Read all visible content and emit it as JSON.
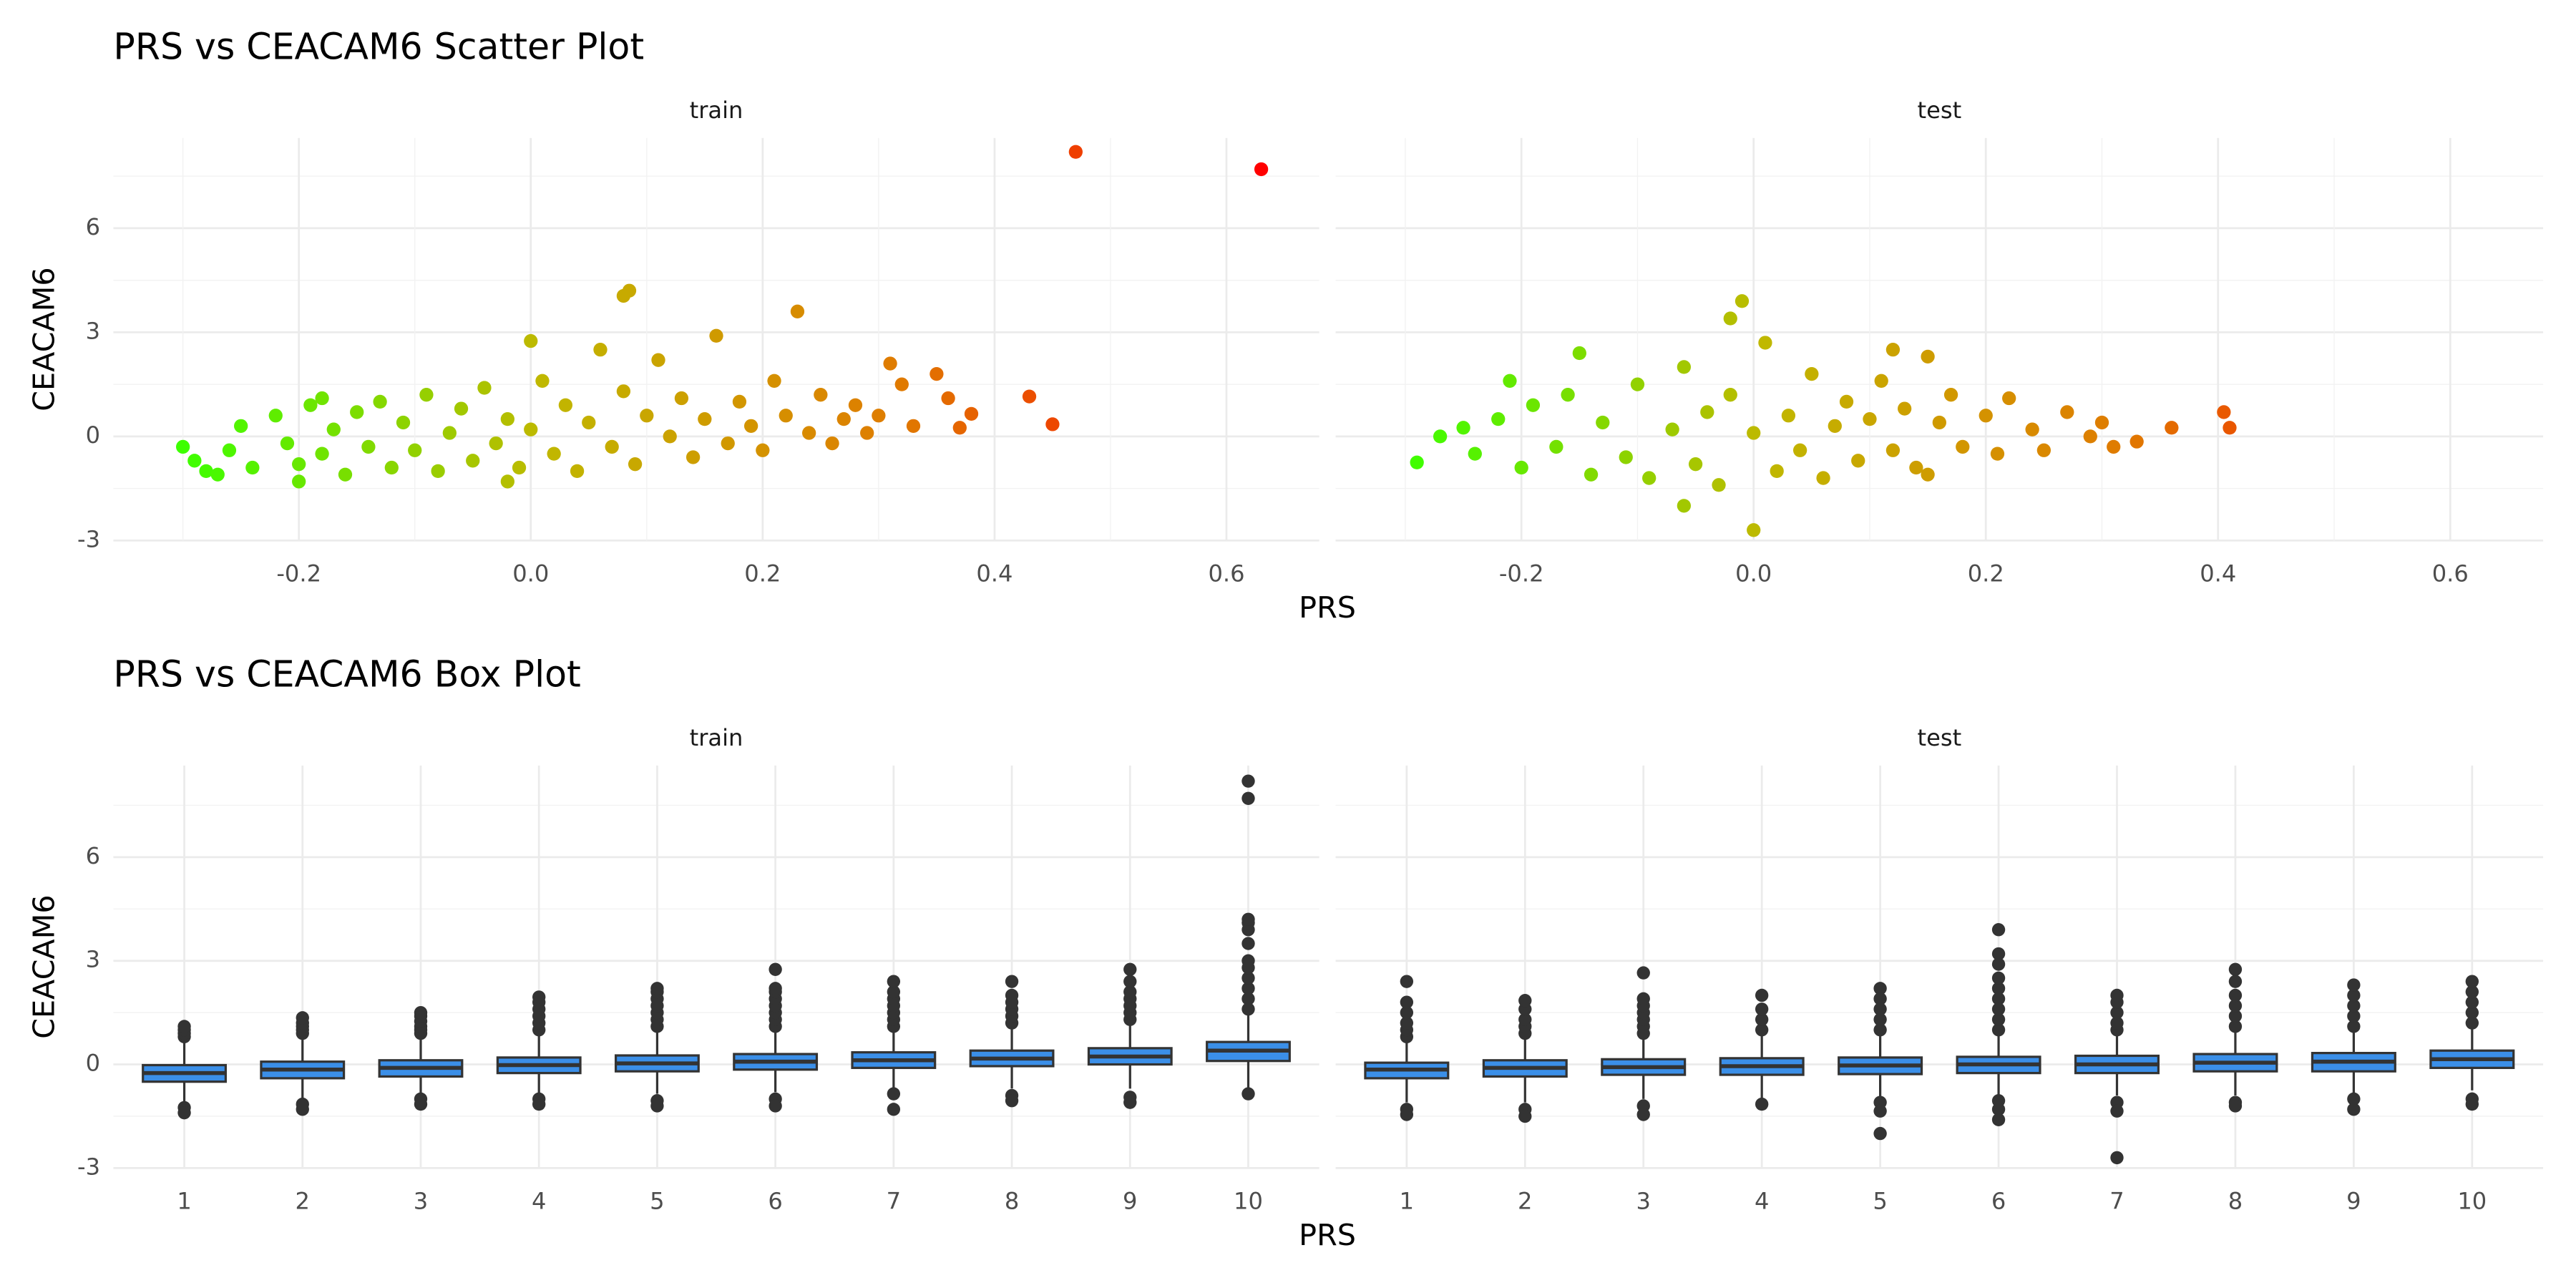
{
  "chart_data": [
    {
      "type": "scatter",
      "title": "PRS vs CEACAM6 Scatter Plot",
      "xlabel": "PRS",
      "ylabel": "CEACAM6",
      "xlim": [
        -0.36,
        0.68
      ],
      "ylim": [
        -3,
        8.6
      ],
      "xticks": [
        -0.2,
        {
          "value": 0,
          "label": "0.0"
        },
        0.2,
        0.4,
        0.6
      ],
      "yticks": [
        -3,
        0,
        3,
        6
      ],
      "grid": true,
      "colors": [
        "#3dff00",
        "#c0b800",
        "#e07a00",
        "#ff0000"
      ],
      "panels": [
        {
          "name": "train",
          "x": [
            0.47,
            0.63,
            0.43,
            0.45,
            0.085,
            0.08,
            0.23,
            -0.3,
            -0.29,
            -0.28,
            -0.27,
            0.38,
            0.36,
            0.37,
            0.35,
            0.31,
            0.0,
            -0.18,
            -0.02,
            -0.2,
            -0.26,
            -0.25,
            -0.24,
            -0.22,
            -0.21,
            -0.2,
            -0.19,
            -0.18,
            -0.17,
            -0.16,
            -0.15,
            -0.14,
            -0.13,
            -0.12,
            -0.11,
            -0.1,
            -0.09,
            -0.08,
            -0.07,
            -0.06,
            -0.05,
            -0.04,
            -0.03,
            -0.02,
            -0.01,
            0.0,
            0.01,
            0.02,
            0.03,
            0.04,
            0.05,
            0.06,
            0.07,
            0.08,
            0.09,
            0.1,
            0.11,
            0.12,
            0.13,
            0.14,
            0.15,
            0.16,
            0.17,
            0.18,
            0.19,
            0.2,
            0.21,
            0.22,
            0.24,
            0.25,
            0.26,
            0.27,
            0.28,
            0.29,
            0.3,
            0.32,
            0.33
          ],
          "y": [
            8.2,
            7.7,
            1.15,
            0.35,
            4.2,
            4.05,
            3.6,
            -0.3,
            -0.7,
            -1.0,
            -1.1,
            0.65,
            1.1,
            0.25,
            1.8,
            2.1,
            2.75,
            1.1,
            -1.3,
            -1.3,
            -0.4,
            0.3,
            -0.9,
            0.6,
            -0.2,
            -0.8,
            0.9,
            -0.5,
            0.2,
            -1.1,
            0.7,
            -0.3,
            1.0,
            -0.9,
            0.4,
            -0.4,
            1.2,
            -1.0,
            0.1,
            0.8,
            -0.7,
            1.4,
            -0.2,
            0.5,
            -0.9,
            0.2,
            1.6,
            -0.5,
            0.9,
            -1.0,
            0.4,
            2.5,
            -0.3,
            1.3,
            -0.8,
            0.6,
            2.2,
            0.0,
            1.1,
            -0.6,
            0.5,
            2.9,
            -0.2,
            1.0,
            0.3,
            -0.4,
            1.6,
            0.6,
            0.1,
            1.2,
            -0.2,
            0.5,
            0.9,
            0.1,
            0.6,
            1.5,
            0.3
          ]
        },
        {
          "name": "test",
          "x": [
            0.405,
            0.41,
            0.36,
            0.33,
            -0.29,
            -0.27,
            -0.25,
            -0.21,
            -0.01,
            -0.02,
            0.0,
            -0.06,
            0.15,
            0.15,
            0.12,
            -0.15,
            -0.24,
            -0.22,
            -0.2,
            -0.19,
            -0.17,
            -0.16,
            -0.14,
            -0.13,
            -0.11,
            -0.1,
            -0.09,
            -0.07,
            -0.06,
            -0.05,
            -0.04,
            -0.03,
            -0.02,
            0.0,
            0.01,
            0.02,
            0.03,
            0.04,
            0.05,
            0.06,
            0.07,
            0.08,
            0.09,
            0.1,
            0.11,
            0.12,
            0.13,
            0.14,
            0.16,
            0.17,
            0.18,
            0.2,
            0.21,
            0.22,
            0.24,
            0.25,
            0.27,
            0.29,
            0.3,
            0.31
          ],
          "y": [
            0.7,
            0.25,
            0.25,
            -0.15,
            -0.75,
            0.0,
            0.25,
            1.6,
            3.9,
            3.4,
            -2.7,
            -2.0,
            -1.1,
            2.3,
            2.5,
            2.4,
            -0.5,
            0.5,
            -0.9,
            0.9,
            -0.3,
            1.2,
            -1.1,
            0.4,
            -0.6,
            1.5,
            -1.2,
            0.2,
            2.0,
            -0.8,
            0.7,
            -1.4,
            1.2,
            0.1,
            2.7,
            -1.0,
            0.6,
            -0.4,
            1.8,
            -1.2,
            0.3,
            1.0,
            -0.7,
            0.5,
            1.6,
            -0.4,
            0.8,
            -0.9,
            0.4,
            1.2,
            -0.3,
            0.6,
            -0.5,
            1.1,
            0.2,
            -0.4,
            0.7,
            0.0,
            0.4,
            -0.3
          ]
        }
      ]
    },
    {
      "type": "box",
      "title": "PRS vs CEACAM6 Box Plot",
      "xlabel": "PRS",
      "ylabel": "CEACAM6",
      "categories": [
        "1",
        "2",
        "3",
        "4",
        "5",
        "6",
        "7",
        "8",
        "9",
        "10"
      ],
      "ylim": [
        -3,
        8.65
      ],
      "yticks": [
        -3,
        0,
        3,
        6
      ],
      "grid": true,
      "color": "#3b8fe8",
      "outlier_color": "#333333",
      "panels": [
        {
          "name": "train",
          "boxes": [
            {
              "q1": -0.5,
              "median": -0.25,
              "q3": -0.02,
              "whislo": -1.1,
              "whishi": 0.7,
              "outliers": [
                0.8,
                0.9,
                1.0,
                1.1,
                -1.25,
                -1.4
              ]
            },
            {
              "q1": -0.4,
              "median": -0.15,
              "q3": 0.08,
              "whislo": -1.0,
              "whishi": 0.8,
              "outliers": [
                0.9,
                1.0,
                1.1,
                1.2,
                1.35,
                -1.15,
                -1.3
              ]
            },
            {
              "q1": -0.35,
              "median": -0.1,
              "q3": 0.12,
              "whislo": -0.9,
              "whishi": 0.8,
              "outliers": [
                0.9,
                1.0,
                1.1,
                1.25,
                1.4,
                1.5,
                -1.0,
                -1.15
              ]
            },
            {
              "q1": -0.25,
              "median": -0.02,
              "q3": 0.2,
              "whislo": -0.85,
              "whishi": 0.9,
              "outliers": [
                1.0,
                1.2,
                1.4,
                1.6,
                1.8,
                1.95,
                -1.0,
                -1.15
              ]
            },
            {
              "q1": -0.2,
              "median": 0.03,
              "q3": 0.26,
              "whislo": -0.85,
              "whishi": 0.95,
              "outliers": [
                1.1,
                1.3,
                1.5,
                1.7,
                1.9,
                2.1,
                2.2,
                -1.05,
                -1.2
              ]
            },
            {
              "q1": -0.15,
              "median": 0.08,
              "q3": 0.3,
              "whislo": -0.8,
              "whishi": 1.0,
              "outliers": [
                1.1,
                1.3,
                1.5,
                1.7,
                1.9,
                2.1,
                2.2,
                2.75,
                -1.0,
                -1.2
              ]
            },
            {
              "q1": -0.1,
              "median": 0.12,
              "q3": 0.35,
              "whislo": -0.75,
              "whishi": 1.0,
              "outliers": [
                1.1,
                1.3,
                1.5,
                1.7,
                1.9,
                2.1,
                2.4,
                -0.85,
                -1.3
              ]
            },
            {
              "q1": -0.05,
              "median": 0.17,
              "q3": 0.4,
              "whislo": -0.7,
              "whishi": 1.05,
              "outliers": [
                1.2,
                1.4,
                1.6,
                1.8,
                2.0,
                2.4,
                -0.9,
                -1.05
              ]
            },
            {
              "q1": 0.0,
              "median": 0.23,
              "q3": 0.47,
              "whislo": -0.7,
              "whishi": 1.15,
              "outliers": [
                1.3,
                1.5,
                1.7,
                1.9,
                2.1,
                2.4,
                2.75,
                -0.95,
                -1.1
              ]
            },
            {
              "q1": 0.1,
              "median": 0.4,
              "q3": 0.65,
              "whislo": -0.7,
              "whishi": 1.45,
              "outliers": [
                1.6,
                1.9,
                2.2,
                2.5,
                2.8,
                3.0,
                3.5,
                3.9,
                4.1,
                4.2,
                7.7,
                8.2,
                -0.85
              ]
            }
          ]
        },
        {
          "name": "test",
          "boxes": [
            {
              "q1": -0.4,
              "median": -0.15,
              "q3": 0.05,
              "whislo": -1.1,
              "whishi": 0.7,
              "outliers": [
                0.8,
                1.0,
                1.2,
                1.5,
                1.8,
                2.4,
                -1.3,
                -1.45
              ]
            },
            {
              "q1": -0.35,
              "median": -0.1,
              "q3": 0.12,
              "whislo": -1.1,
              "whishi": 0.8,
              "outliers": [
                0.9,
                1.1,
                1.3,
                1.6,
                1.85,
                -1.3,
                -1.5
              ]
            },
            {
              "q1": -0.3,
              "median": -0.08,
              "q3": 0.15,
              "whislo": -1.0,
              "whishi": 0.8,
              "outliers": [
                0.9,
                1.1,
                1.3,
                1.5,
                1.7,
                1.9,
                2.65,
                -1.2,
                -1.45
              ]
            },
            {
              "q1": -0.3,
              "median": -0.05,
              "q3": 0.18,
              "whislo": -1.0,
              "whishi": 0.85,
              "outliers": [
                1.0,
                1.3,
                1.6,
                2.0,
                -1.15
              ]
            },
            {
              "q1": -0.28,
              "median": -0.03,
              "q3": 0.2,
              "whislo": -0.95,
              "whishi": 0.85,
              "outliers": [
                1.0,
                1.3,
                1.6,
                1.9,
                2.2,
                -1.1,
                -1.35,
                -2.0
              ]
            },
            {
              "q1": -0.25,
              "median": 0.0,
              "q3": 0.22,
              "whislo": -0.95,
              "whishi": 0.9,
              "outliers": [
                1.0,
                1.3,
                1.6,
                1.9,
                2.2,
                2.5,
                2.9,
                3.2,
                3.9,
                -1.05,
                -1.3,
                -1.6
              ]
            },
            {
              "q1": -0.25,
              "median": 0.0,
              "q3": 0.25,
              "whislo": -0.9,
              "whishi": 0.9,
              "outliers": [
                1.0,
                1.2,
                1.5,
                1.8,
                2.0,
                -1.1,
                -1.35,
                -2.7
              ]
            },
            {
              "q1": -0.2,
              "median": 0.05,
              "q3": 0.3,
              "whislo": -0.9,
              "whishi": 1.0,
              "outliers": [
                1.1,
                1.4,
                1.7,
                2.0,
                2.4,
                2.75,
                -1.1,
                -1.2
              ]
            },
            {
              "q1": -0.2,
              "median": 0.08,
              "q3": 0.33,
              "whislo": -0.85,
              "whishi": 1.0,
              "outliers": [
                1.1,
                1.4,
                1.7,
                2.0,
                2.3,
                -1.0,
                -1.3
              ]
            },
            {
              "q1": -0.1,
              "median": 0.15,
              "q3": 0.4,
              "whislo": -0.75,
              "whishi": 1.05,
              "outliers": [
                1.2,
                1.5,
                1.8,
                2.1,
                2.4,
                -1.0,
                -1.15
              ]
            }
          ]
        }
      ]
    }
  ]
}
